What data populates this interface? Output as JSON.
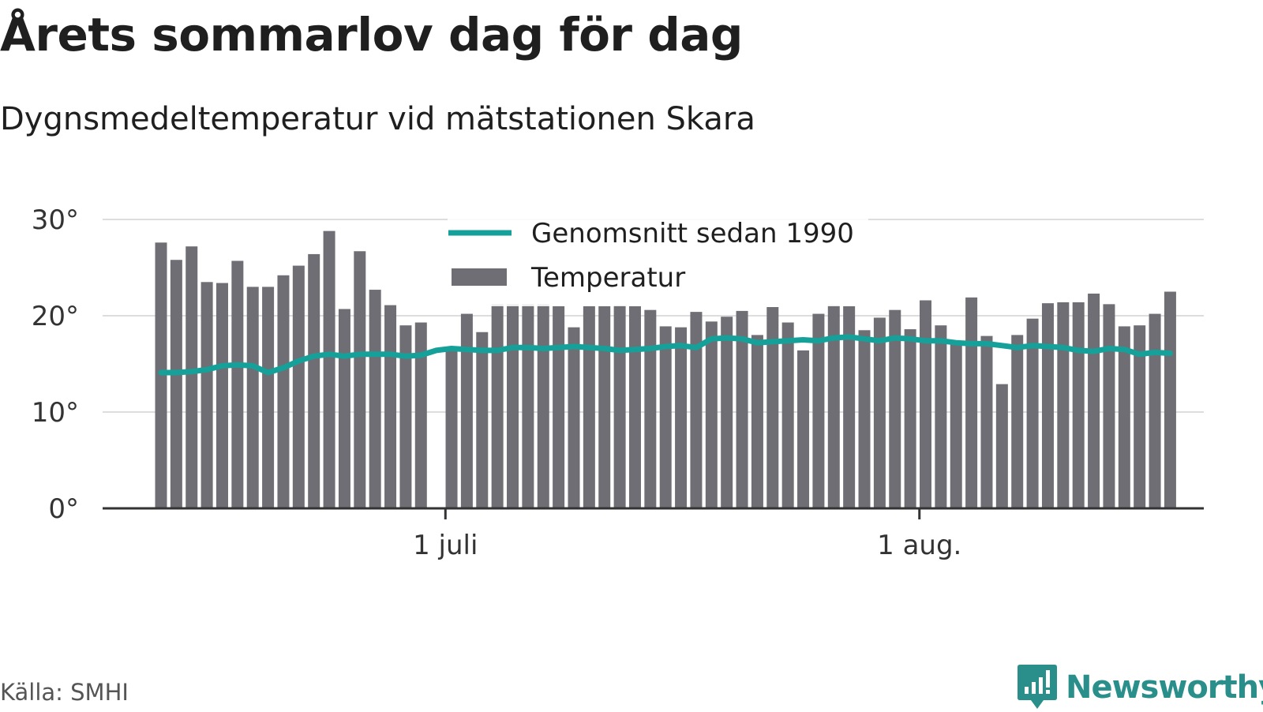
{
  "title": "Årets sommarlov dag för dag",
  "subtitle": "Dygnsmedeltemperatur vid mätstationen Skara",
  "source": "Källa: SMHI",
  "brand": "Newsworthy",
  "colors": {
    "bar": "#6f6e74",
    "line": "#15a199",
    "grid": "#dddddd",
    "axis": "#333333",
    "brand": "#2a8f8b"
  },
  "chart_data": {
    "type": "bar",
    "x_start": "2019-06-12",
    "xtick_labels": [
      {
        "label": "1 juli",
        "date": "2019-07-01"
      },
      {
        "label": "1 aug.",
        "date": "2019-08-01"
      }
    ],
    "ylim": [
      0,
      30
    ],
    "yticks": [
      0,
      10,
      20,
      30
    ],
    "ytick_labels": [
      "0°",
      "10°",
      "20°",
      "30°"
    ],
    "grid": true,
    "legend_position": "top-center",
    "series": [
      {
        "name": "Temperatur",
        "type": "bar",
        "values": [
          27.6,
          25.8,
          27.2,
          23.5,
          23.4,
          25.7,
          23.0,
          23.0,
          24.2,
          25.2,
          26.4,
          28.8,
          20.7,
          26.7,
          22.7,
          21.1,
          19.0,
          19.3,
          null,
          16.6,
          20.2,
          18.3,
          21.2,
          21.2,
          21.2,
          21.2,
          21.0,
          18.8,
          21.0,
          21.0,
          21.1,
          21.0,
          20.6,
          18.9,
          18.8,
          20.4,
          19.4,
          19.9,
          20.5,
          18.0,
          20.9,
          19.3,
          16.4,
          20.2,
          21.1,
          21.0,
          18.5,
          19.8,
          20.6,
          18.6,
          21.6,
          19.0,
          17.1,
          21.9,
          17.9,
          12.9,
          18.0,
          19.7,
          21.3,
          21.4,
          21.4,
          22.3,
          21.2,
          18.9,
          19.0,
          20.2,
          22.5
        ]
      },
      {
        "name": "Genomsnitt sedan 1990",
        "type": "line",
        "values": [
          14.1,
          14.1,
          14.2,
          14.4,
          14.8,
          14.9,
          14.8,
          14.1,
          14.6,
          15.3,
          15.8,
          16.0,
          15.8,
          16.0,
          16.0,
          16.0,
          15.8,
          15.9,
          16.4,
          16.6,
          16.5,
          16.4,
          16.4,
          16.7,
          16.7,
          16.6,
          16.7,
          16.8,
          16.7,
          16.6,
          16.4,
          16.5,
          16.6,
          16.8,
          16.9,
          16.7,
          17.6,
          17.7,
          17.6,
          17.2,
          17.3,
          17.4,
          17.5,
          17.4,
          17.7,
          17.8,
          17.6,
          17.4,
          17.7,
          17.6,
          17.4,
          17.4,
          17.2,
          17.1,
          17.1,
          16.9,
          16.7,
          16.9,
          16.8,
          16.7,
          16.4,
          16.3,
          16.6,
          16.5,
          16.0,
          16.2,
          16.1
        ]
      }
    ]
  }
}
